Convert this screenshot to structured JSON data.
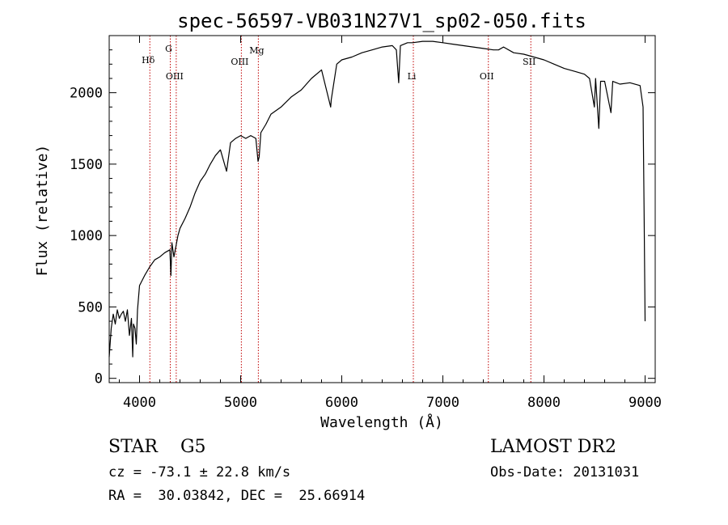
{
  "chart_data": {
    "type": "line",
    "title": "spec-56597-VB031N27V1_sp02-050.fits",
    "xlabel": "Wavelength (Å)",
    "ylabel": "Flux (relative)",
    "xlim": [
      3700,
      9100
    ],
    "ylim": [
      -30,
      2400
    ],
    "x_ticks": [
      4000,
      5000,
      6000,
      7000,
      8000,
      9000
    ],
    "y_ticks": [
      0,
      500,
      1000,
      1500,
      2000
    ],
    "grid": false,
    "series": [
      {
        "x": [
          3700,
          3720,
          3740,
          3760,
          3780,
          3800,
          3820,
          3840,
          3860,
          3880,
          3900,
          3920,
          3933,
          3940,
          3955,
          3968,
          3980,
          4000,
          4050,
          4100,
          4150,
          4200,
          4250,
          4300,
          4310,
          4320,
          4340,
          4380,
          4400,
          4450,
          4500,
          4550,
          4600,
          4650,
          4700,
          4750,
          4800,
          4861,
          4900,
          4950,
          5000,
          5050,
          5100,
          5150,
          5172,
          5183,
          5200,
          5250,
          5300,
          5400,
          5500,
          5600,
          5700,
          5800,
          5890,
          5896,
          5950,
          6000,
          6100,
          6200,
          6300,
          6400,
          6500,
          6540,
          6563,
          6580,
          6650,
          6700,
          6800,
          6900,
          7000,
          7100,
          7200,
          7300,
          7400,
          7500,
          7550,
          7600,
          7700,
          7800,
          7900,
          8000,
          8100,
          8200,
          8300,
          8400,
          8450,
          8498,
          8510,
          8542,
          8560,
          8600,
          8662,
          8680,
          8750,
          8850,
          8950,
          8980,
          8990,
          9000
        ],
        "y": [
          150,
          350,
          450,
          380,
          480,
          420,
          450,
          470,
          400,
          480,
          300,
          420,
          150,
          380,
          350,
          240,
          480,
          650,
          720,
          780,
          830,
          850,
          880,
          900,
          720,
          950,
          850,
          1000,
          1050,
          1120,
          1200,
          1300,
          1380,
          1430,
          1500,
          1560,
          1600,
          1450,
          1650,
          1680,
          1700,
          1680,
          1700,
          1680,
          1520,
          1550,
          1720,
          1780,
          1850,
          1900,
          1970,
          2020,
          2100,
          2160,
          1900,
          1950,
          2200,
          2230,
          2250,
          2280,
          2300,
          2320,
          2330,
          2300,
          2070,
          2330,
          2350,
          2350,
          2360,
          2360,
          2350,
          2340,
          2330,
          2320,
          2310,
          2300,
          2300,
          2320,
          2280,
          2270,
          2250,
          2230,
          2200,
          2170,
          2150,
          2130,
          2100,
          1900,
          2100,
          1750,
          2080,
          2080,
          1860,
          2080,
          2060,
          2070,
          2050,
          1900,
          1150,
          400
        ],
        "color": "#000000"
      }
    ],
    "annotations": [
      {
        "label": "Hδ",
        "x": 4102
      },
      {
        "label": "G",
        "x": 4304
      },
      {
        "label": "OIII",
        "x": 4363
      },
      {
        "label": "OIII",
        "x": 5007
      },
      {
        "label": "Mg",
        "x": 5175
      },
      {
        "label": "Li",
        "x": 6708
      },
      {
        "label": "OII",
        "x": 7450
      },
      {
        "label": "SII",
        "x": 7870
      }
    ],
    "marker_line_color": "#c00000"
  },
  "info": {
    "class_line": "STAR    G5",
    "survey": "LAMOST DR2",
    "cz_line": "cz = -73.1 ± 22.8 km/s",
    "obs_date": "Obs-Date: 20131031",
    "coords": "RA =  30.03842, DEC =  25.66914"
  }
}
